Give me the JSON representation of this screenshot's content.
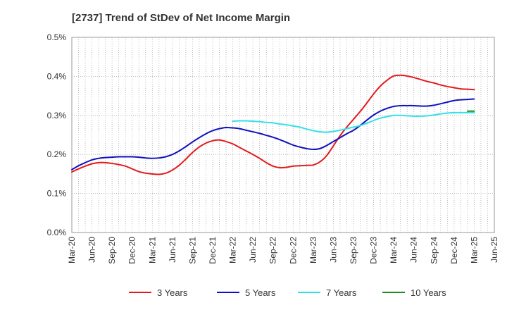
{
  "chart_data": {
    "type": "line",
    "title": "[2737]  Trend of StDev of Net Income Margin",
    "xlabel": "",
    "ylabel": "",
    "x_tick_labels": [
      "Mar-20",
      "Jun-20",
      "Sep-20",
      "Dec-20",
      "Mar-21",
      "Jun-21",
      "Sep-21",
      "Dec-21",
      "Mar-22",
      "Jun-22",
      "Sep-22",
      "Dec-22",
      "Mar-23",
      "Jun-23",
      "Sep-23",
      "Dec-23",
      "Mar-24",
      "Jun-24",
      "Sep-24",
      "Dec-24",
      "Mar-25",
      "Jun-25"
    ],
    "y_tick_labels": [
      "0.0%",
      "0.1%",
      "0.2%",
      "0.3%",
      "0.4%",
      "0.5%"
    ],
    "y_ticks": [
      0,
      0.1,
      0.2,
      0.3,
      0.4,
      0.5
    ],
    "ylim": [
      0,
      0.5
    ],
    "grid": true,
    "legend_position": "bottom",
    "colors": {
      "3y": "#e31a1c",
      "5y": "#1010c0",
      "7y": "#33e0e8",
      "10y": "#1f8a1f",
      "grid": "#aaaaaa",
      "axis": "#999999"
    },
    "series": [
      {
        "name": "3 Years",
        "color_key": "3y",
        "values": [
          [
            "Mar-20",
            0.155
          ],
          [
            "Apr-20",
            0.163
          ],
          [
            "May-20",
            0.17
          ],
          [
            "Jun-20",
            0.176
          ],
          [
            "Jul-20",
            0.179
          ],
          [
            "Aug-20",
            0.179
          ],
          [
            "Sep-20",
            0.177
          ],
          [
            "Oct-20",
            0.174
          ],
          [
            "Nov-20",
            0.17
          ],
          [
            "Dec-20",
            0.163
          ],
          [
            "Jan-21",
            0.156
          ],
          [
            "Feb-21",
            0.152
          ],
          [
            "Mar-21",
            0.15
          ],
          [
            "Apr-21",
            0.149
          ],
          [
            "May-21",
            0.152
          ],
          [
            "Jun-21",
            0.16
          ],
          [
            "Jul-21",
            0.172
          ],
          [
            "Aug-21",
            0.188
          ],
          [
            "Sep-21",
            0.205
          ],
          [
            "Oct-21",
            0.219
          ],
          [
            "Nov-21",
            0.229
          ],
          [
            "Dec-21",
            0.235
          ],
          [
            "Jan-22",
            0.237
          ],
          [
            "Feb-22",
            0.233
          ],
          [
            "Mar-22",
            0.227
          ],
          [
            "Apr-22",
            0.218
          ],
          [
            "May-22",
            0.209
          ],
          [
            "Jun-22",
            0.2
          ],
          [
            "Jul-22",
            0.19
          ],
          [
            "Aug-22",
            0.179
          ],
          [
            "Sep-22",
            0.17
          ],
          [
            "Oct-22",
            0.166
          ],
          [
            "Nov-22",
            0.167
          ],
          [
            "Dec-22",
            0.17
          ],
          [
            "Jan-23",
            0.171
          ],
          [
            "Feb-23",
            0.172
          ],
          [
            "Mar-23",
            0.173
          ],
          [
            "Apr-23",
            0.181
          ],
          [
            "May-23",
            0.197
          ],
          [
            "Jun-23",
            0.222
          ],
          [
            "Jul-23",
            0.248
          ],
          [
            "Aug-23",
            0.27
          ],
          [
            "Sep-23",
            0.29
          ],
          [
            "Oct-23",
            0.31
          ],
          [
            "Nov-23",
            0.332
          ],
          [
            "Dec-23",
            0.355
          ],
          [
            "Jan-24",
            0.375
          ],
          [
            "Feb-24",
            0.39
          ],
          [
            "Mar-24",
            0.401
          ],
          [
            "Apr-24",
            0.403
          ],
          [
            "May-24",
            0.401
          ],
          [
            "Jun-24",
            0.397
          ],
          [
            "Jul-24",
            0.392
          ],
          [
            "Aug-24",
            0.387
          ],
          [
            "Sep-24",
            0.383
          ],
          [
            "Oct-24",
            0.378
          ],
          [
            "Nov-24",
            0.374
          ],
          [
            "Dec-24",
            0.371
          ],
          [
            "Jan-25",
            0.368
          ],
          [
            "Feb-25",
            0.367
          ],
          [
            "Mar-25",
            0.366
          ]
        ]
      },
      {
        "name": "5 Years",
        "color_key": "5y",
        "values": [
          [
            "Mar-20",
            0.161
          ],
          [
            "Apr-20",
            0.171
          ],
          [
            "May-20",
            0.179
          ],
          [
            "Jun-20",
            0.186
          ],
          [
            "Jul-20",
            0.19
          ],
          [
            "Aug-20",
            0.192
          ],
          [
            "Sep-20",
            0.193
          ],
          [
            "Oct-20",
            0.194
          ],
          [
            "Nov-20",
            0.194
          ],
          [
            "Dec-20",
            0.194
          ],
          [
            "Jan-21",
            0.193
          ],
          [
            "Feb-21",
            0.191
          ],
          [
            "Mar-21",
            0.19
          ],
          [
            "Apr-21",
            0.191
          ],
          [
            "May-21",
            0.194
          ],
          [
            "Jun-21",
            0.2
          ],
          [
            "Jul-21",
            0.209
          ],
          [
            "Aug-21",
            0.22
          ],
          [
            "Sep-21",
            0.232
          ],
          [
            "Oct-21",
            0.243
          ],
          [
            "Nov-21",
            0.253
          ],
          [
            "Dec-21",
            0.261
          ],
          [
            "Jan-22",
            0.266
          ],
          [
            "Feb-22",
            0.269
          ],
          [
            "Mar-22",
            0.268
          ],
          [
            "Apr-22",
            0.266
          ],
          [
            "May-22",
            0.262
          ],
          [
            "Jun-22",
            0.258
          ],
          [
            "Jul-22",
            0.254
          ],
          [
            "Aug-22",
            0.249
          ],
          [
            "Sep-22",
            0.244
          ],
          [
            "Oct-22",
            0.238
          ],
          [
            "Nov-22",
            0.231
          ],
          [
            "Dec-22",
            0.224
          ],
          [
            "Jan-23",
            0.219
          ],
          [
            "Feb-23",
            0.215
          ],
          [
            "Mar-23",
            0.213
          ],
          [
            "Apr-23",
            0.215
          ],
          [
            "May-23",
            0.223
          ],
          [
            "Jun-23",
            0.233
          ],
          [
            "Jul-23",
            0.243
          ],
          [
            "Aug-23",
            0.253
          ],
          [
            "Sep-23",
            0.262
          ],
          [
            "Oct-23",
            0.274
          ],
          [
            "Nov-23",
            0.288
          ],
          [
            "Dec-23",
            0.301
          ],
          [
            "Jan-24",
            0.311
          ],
          [
            "Feb-24",
            0.318
          ],
          [
            "Mar-24",
            0.323
          ],
          [
            "Apr-24",
            0.325
          ],
          [
            "May-24",
            0.325
          ],
          [
            "Jun-24",
            0.325
          ],
          [
            "Jul-24",
            0.324
          ],
          [
            "Aug-24",
            0.324
          ],
          [
            "Sep-24",
            0.326
          ],
          [
            "Oct-24",
            0.33
          ],
          [
            "Nov-24",
            0.334
          ],
          [
            "Dec-24",
            0.338
          ],
          [
            "Jan-25",
            0.34
          ],
          [
            "Feb-25",
            0.341
          ],
          [
            "Mar-25",
            0.342
          ]
        ]
      },
      {
        "name": "7 Years",
        "color_key": "7y",
        "values": [
          [
            "Mar-22",
            0.285
          ],
          [
            "Apr-22",
            0.286
          ],
          [
            "May-22",
            0.286
          ],
          [
            "Jun-22",
            0.285
          ],
          [
            "Jul-22",
            0.284
          ],
          [
            "Aug-22",
            0.282
          ],
          [
            "Sep-22",
            0.281
          ],
          [
            "Oct-22",
            0.278
          ],
          [
            "Nov-22",
            0.276
          ],
          [
            "Dec-22",
            0.273
          ],
          [
            "Jan-23",
            0.27
          ],
          [
            "Feb-23",
            0.265
          ],
          [
            "Mar-23",
            0.261
          ],
          [
            "Apr-23",
            0.258
          ],
          [
            "May-23",
            0.257
          ],
          [
            "Jun-23",
            0.259
          ],
          [
            "Jul-23",
            0.262
          ],
          [
            "Aug-23",
            0.266
          ],
          [
            "Sep-23",
            0.27
          ],
          [
            "Oct-23",
            0.274
          ],
          [
            "Nov-23",
            0.28
          ],
          [
            "Dec-23",
            0.287
          ],
          [
            "Jan-24",
            0.293
          ],
          [
            "Feb-24",
            0.297
          ],
          [
            "Mar-24",
            0.3
          ],
          [
            "Apr-24",
            0.3
          ],
          [
            "May-24",
            0.299
          ],
          [
            "Jun-24",
            0.298
          ],
          [
            "Jul-24",
            0.298
          ],
          [
            "Aug-24",
            0.299
          ],
          [
            "Sep-24",
            0.301
          ],
          [
            "Oct-24",
            0.304
          ],
          [
            "Nov-24",
            0.306
          ],
          [
            "Dec-24",
            0.307
          ],
          [
            "Jan-25",
            0.307
          ],
          [
            "Feb-25",
            0.307
          ],
          [
            "Mar-25",
            0.307
          ]
        ]
      },
      {
        "name": "10 Years",
        "color_key": "10y",
        "values": [
          [
            "Feb-25",
            0.311
          ],
          [
            "Mar-25",
            0.311
          ]
        ]
      }
    ]
  }
}
